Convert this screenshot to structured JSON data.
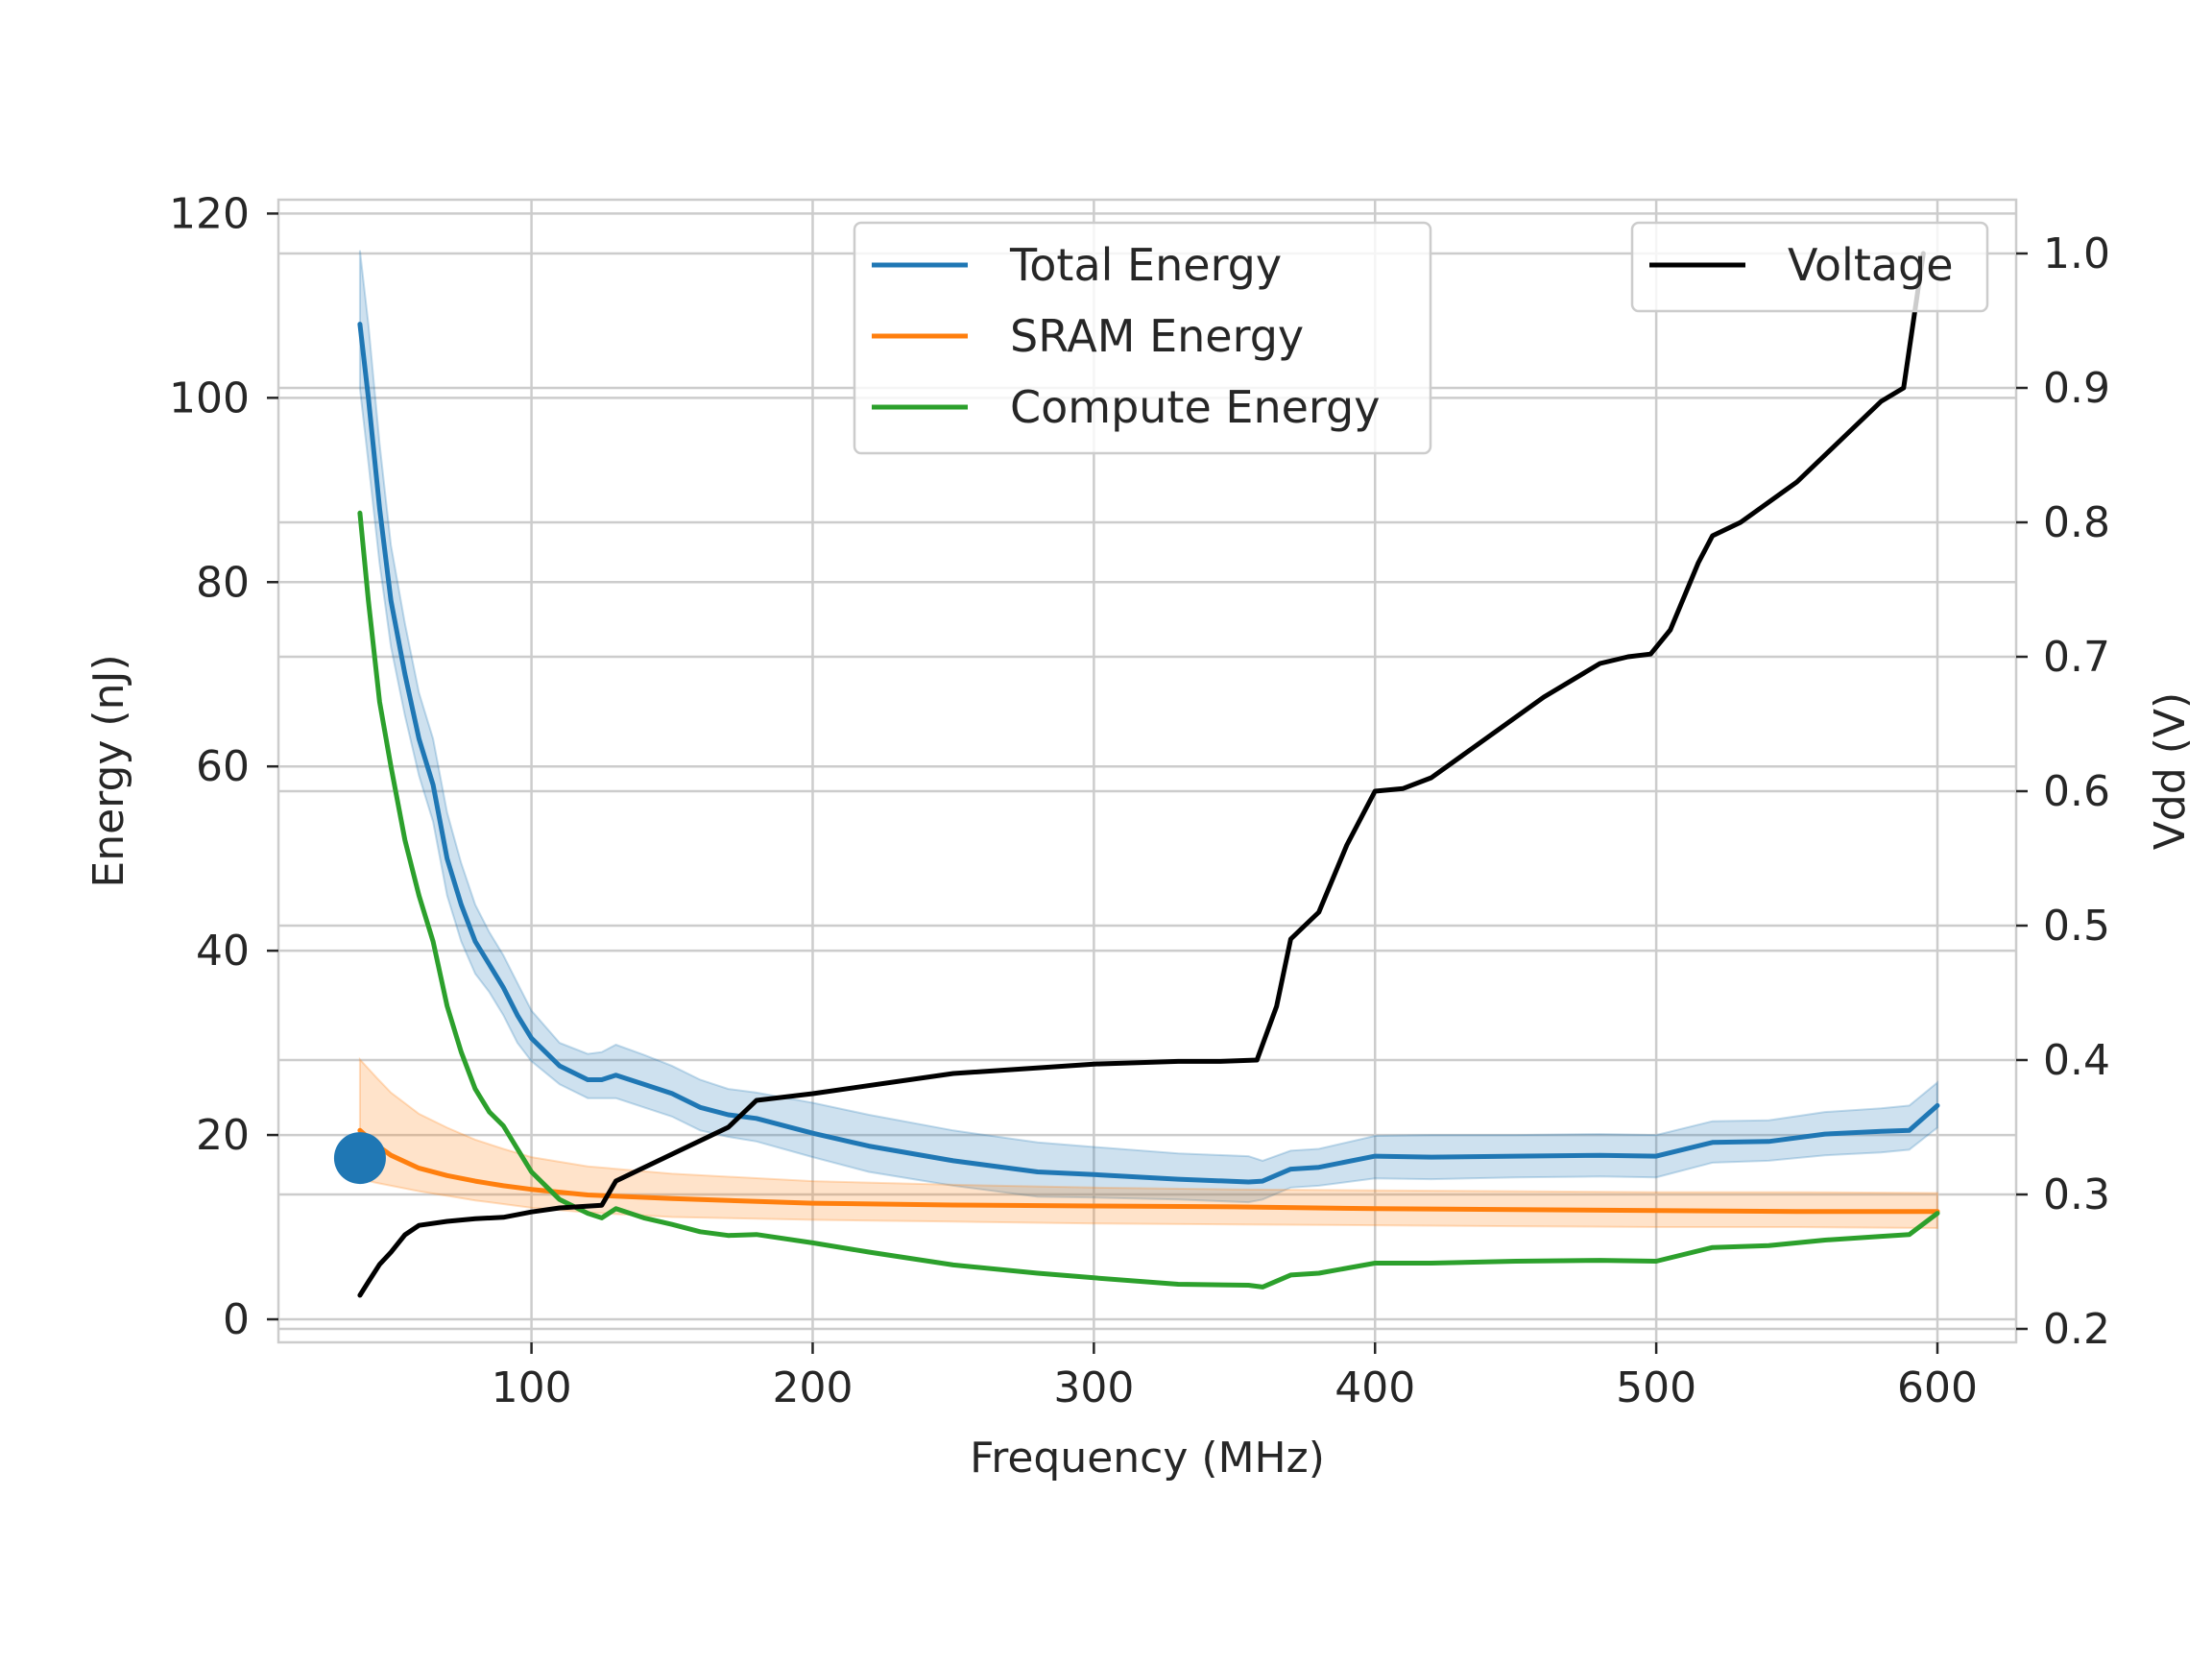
{
  "chart_data": {
    "type": "line",
    "xlabel": "Frequency (MHz)",
    "ylabel": "Energy (nJ)",
    "y2label": "Vdd (V)",
    "xlim": [
      10,
      628
    ],
    "ylim": [
      -2.5,
      121.5
    ],
    "y2lim": [
      0.19,
      1.04
    ],
    "xticks": [
      100,
      200,
      300,
      400,
      500,
      600
    ],
    "yticks": [
      0,
      20,
      40,
      60,
      80,
      100,
      120
    ],
    "y2ticks": [
      0.2,
      0.3,
      0.4,
      0.5,
      0.6,
      0.7,
      0.8,
      0.9,
      1.0
    ],
    "grid": true,
    "legend_left": {
      "placement": "top-center",
      "entries": [
        "Total Energy",
        "SRAM Energy",
        "Compute Energy"
      ]
    },
    "legend_right": {
      "placement": "top-right",
      "entries": [
        "Voltage"
      ]
    },
    "marker": {
      "x": 39,
      "y": 17.5,
      "color": "#1f77b4"
    },
    "series": [
      {
        "name": "Total Energy",
        "axis": "left",
        "color": "#1f77b4",
        "x": [
          39,
          42,
          46,
          50,
          55,
          60,
          65,
          70,
          75,
          80,
          85,
          90,
          95,
          100,
          110,
          120,
          125,
          130,
          140,
          150,
          160,
          170,
          180,
          200,
          220,
          250,
          280,
          300,
          330,
          355,
          360,
          370,
          380,
          400,
          420,
          450,
          480,
          500,
          520,
          540,
          560,
          580,
          590,
          600
        ],
        "y": [
          108,
          100,
          88,
          78,
          70,
          63,
          58,
          50,
          45,
          41,
          38.5,
          36,
          33,
          30.5,
          27.5,
          26,
          26,
          26.5,
          25.5,
          24.5,
          23,
          22.2,
          21.8,
          20.2,
          18.8,
          17.2,
          16,
          15.7,
          15.2,
          14.9,
          15,
          16.3,
          16.5,
          17.7,
          17.6,
          17.7,
          17.8,
          17.7,
          19.2,
          19.3,
          20.1,
          20.4,
          20.5,
          23.2
        ],
        "band_upper": [
          116,
          108,
          95,
          84,
          75.5,
          68,
          63,
          55,
          49.5,
          45,
          42,
          39.5,
          36.5,
          33.5,
          30,
          28.8,
          29,
          29.8,
          28.7,
          27.5,
          26,
          25,
          24.6,
          23.5,
          22.2,
          20.5,
          19.2,
          18.7,
          18,
          17.7,
          17.2,
          18.3,
          18.5,
          19.9,
          20,
          20,
          20.1,
          20,
          21.5,
          21.6,
          22.5,
          22.9,
          23.2,
          25.7
        ],
        "band_lower": [
          101,
          93,
          82,
          73,
          65.5,
          59,
          54,
          46,
          41,
          37.5,
          35.5,
          33,
          30,
          28,
          25.5,
          24,
          24,
          24,
          23,
          22,
          20.5,
          19.8,
          19.3,
          17.6,
          16,
          14.5,
          13.3,
          13.2,
          13,
          12.7,
          13,
          14.3,
          14.5,
          15.3,
          15.2,
          15.4,
          15.5,
          15.4,
          17,
          17.2,
          17.8,
          18.1,
          18.4,
          20.8
        ]
      },
      {
        "name": "SRAM Energy",
        "axis": "left",
        "color": "#ff7f0e",
        "x": [
          39,
          45,
          50,
          60,
          70,
          80,
          90,
          100,
          120,
          150,
          200,
          250,
          300,
          350,
          400,
          450,
          500,
          550,
          600
        ],
        "y": [
          20.5,
          18.9,
          17.8,
          16.4,
          15.6,
          15,
          14.5,
          14.1,
          13.5,
          13.1,
          12.6,
          12.4,
          12.3,
          12.2,
          12,
          11.9,
          11.8,
          11.7,
          11.7
        ],
        "band_upper": [
          28.2,
          26.2,
          24.6,
          22.3,
          20.8,
          19.5,
          18.5,
          17.6,
          16.6,
          15.8,
          15,
          14.6,
          14.3,
          14.1,
          14,
          13.9,
          13.8,
          13.8,
          13.7
        ],
        "band_lower": [
          15.2,
          14.8,
          14.5,
          13.9,
          13.4,
          12.9,
          12.5,
          12.1,
          11.6,
          11.1,
          10.8,
          10.6,
          10.4,
          10.3,
          10.2,
          10.1,
          10,
          10,
          9.9
        ]
      },
      {
        "name": "Compute Energy",
        "axis": "left",
        "color": "#2ca02c",
        "x": [
          39,
          42,
          46,
          50,
          55,
          60,
          65,
          70,
          75,
          80,
          85,
          90,
          95,
          100,
          110,
          120,
          125,
          130,
          140,
          150,
          160,
          170,
          180,
          200,
          220,
          250,
          280,
          300,
          330,
          355,
          360,
          370,
          380,
          400,
          420,
          450,
          480,
          500,
          520,
          540,
          560,
          580,
          590,
          600
        ],
        "y": [
          87.5,
          78,
          67,
          60,
          52,
          46,
          41,
          34,
          29,
          25,
          22.5,
          21,
          18.5,
          16,
          13,
          11.5,
          11,
          12,
          11,
          10.3,
          9.5,
          9.1,
          9.2,
          8.3,
          7.3,
          5.9,
          5,
          4.5,
          3.8,
          3.7,
          3.5,
          4.8,
          5,
          6.1,
          6.1,
          6.3,
          6.4,
          6.3,
          7.8,
          8,
          8.6,
          9,
          9.2,
          11.5
        ]
      },
      {
        "name": "Voltage",
        "axis": "right",
        "color": "#000000",
        "x": [
          39,
          42,
          46,
          50,
          55,
          60,
          70,
          80,
          90,
          100,
          110,
          125,
          130,
          140,
          150,
          160,
          170,
          175,
          180,
          200,
          250,
          300,
          330,
          345,
          358,
          365,
          370,
          375,
          380,
          390,
          400,
          410,
          420,
          440,
          460,
          480,
          490,
          498,
          505,
          515,
          520,
          530,
          550,
          570,
          580,
          588,
          595
        ],
        "y": [
          0.225,
          0.235,
          0.248,
          0.257,
          0.27,
          0.277,
          0.28,
          0.282,
          0.283,
          0.287,
          0.29,
          0.292,
          0.31,
          0.32,
          0.33,
          0.34,
          0.35,
          0.36,
          0.37,
          0.375,
          0.39,
          0.397,
          0.399,
          0.399,
          0.4,
          0.44,
          0.49,
          0.5,
          0.51,
          0.56,
          0.6,
          0.602,
          0.61,
          0.64,
          0.67,
          0.695,
          0.7,
          0.702,
          0.72,
          0.77,
          0.79,
          0.8,
          0.83,
          0.87,
          0.89,
          0.9,
          1.0
        ]
      }
    ]
  }
}
